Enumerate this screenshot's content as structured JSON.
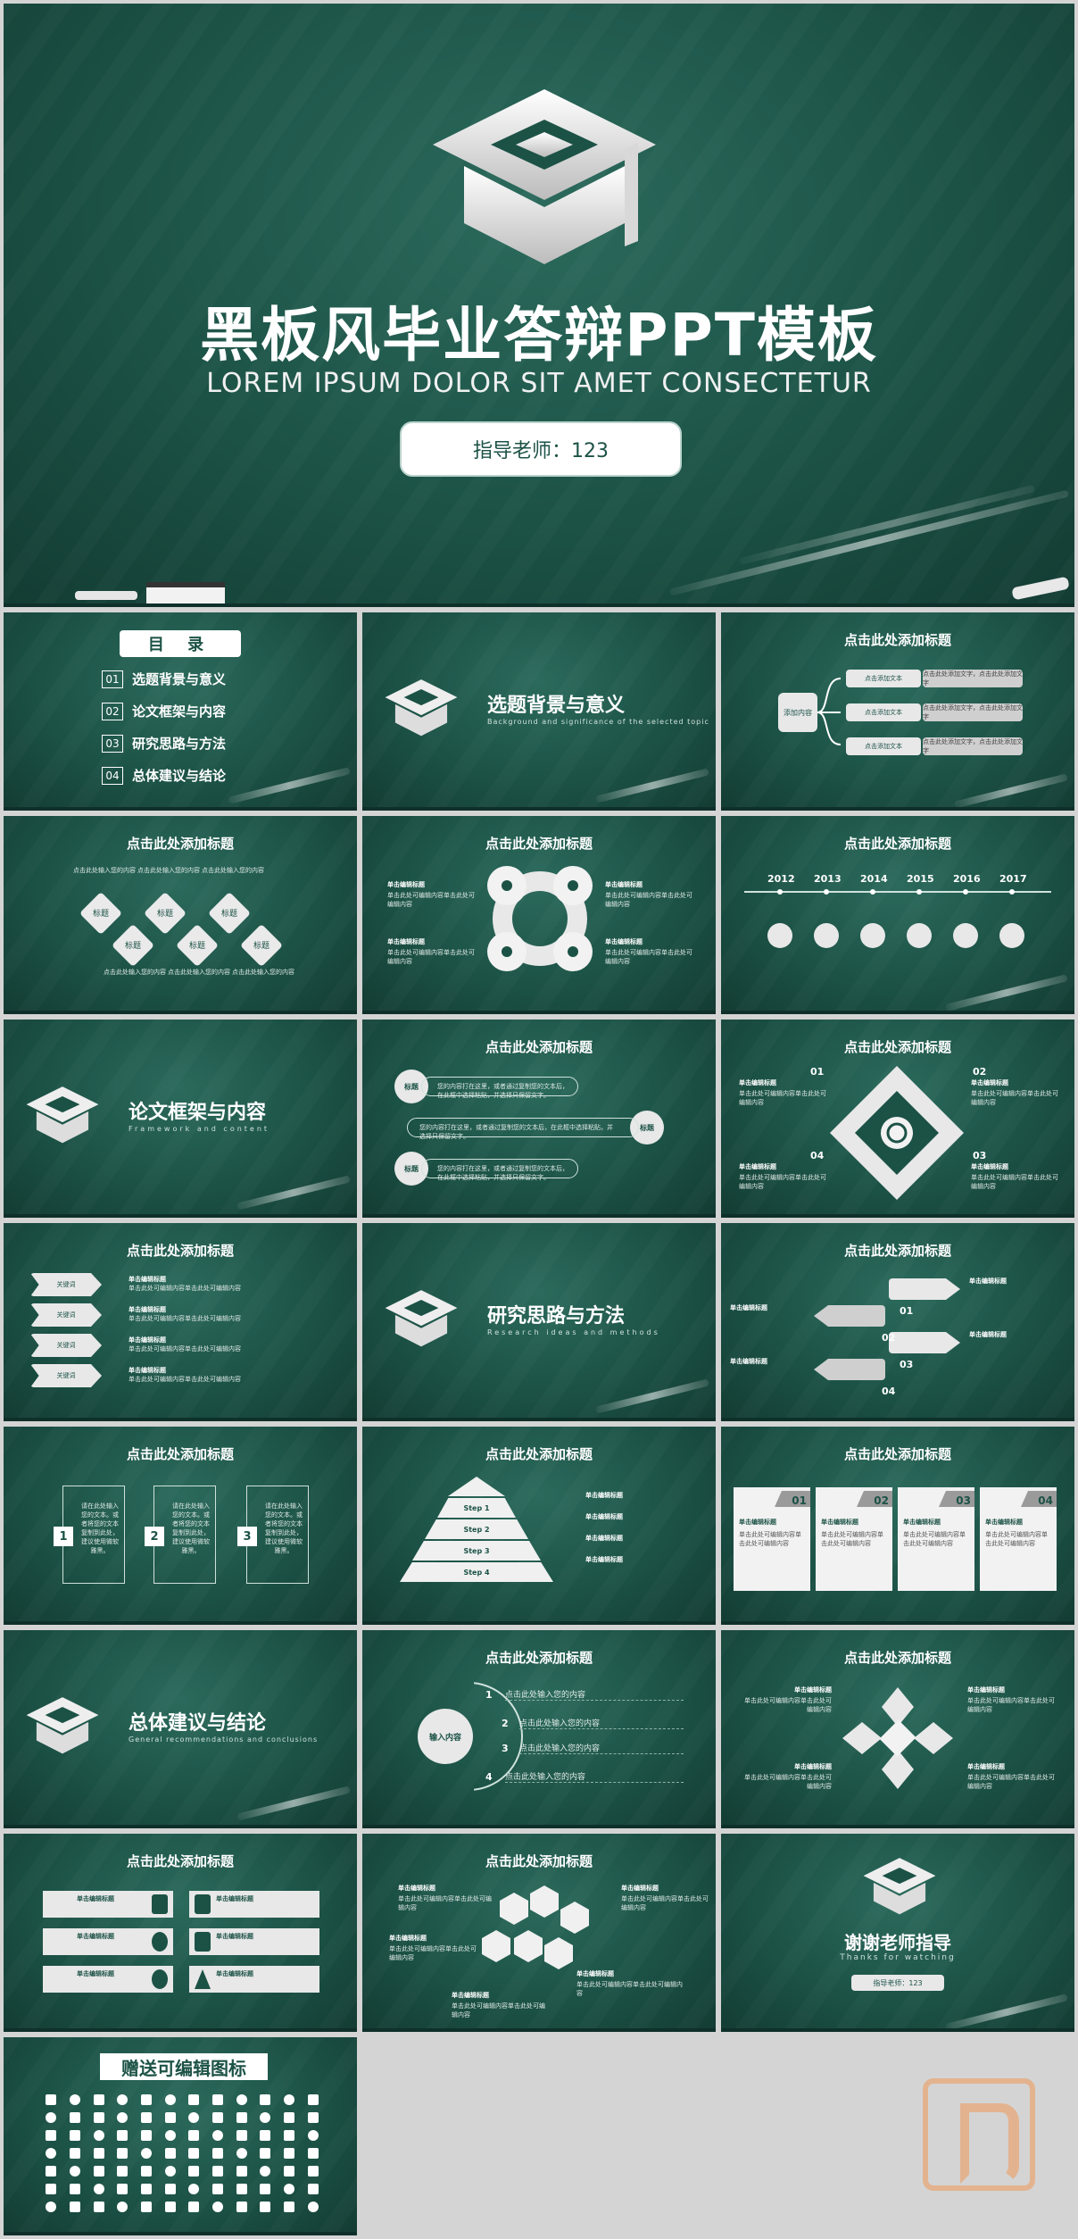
{
  "colors": {
    "board": "#1c5246",
    "board_dark": "#133c33",
    "chalk": "#ffffff",
    "accent_pill": "#e8e8e8"
  },
  "hero": {
    "title": "黑板风毕业答辩PPT模板",
    "subtitle": "LOREM IPSUM DOLOR SIT AMET CONSECTETUR",
    "advisor_button": "指导老师：123",
    "icon": "graduation-cap-icon"
  },
  "toc": {
    "heading": "目 录",
    "items": [
      {
        "num": "01",
        "label": "选题背景与意义"
      },
      {
        "num": "02",
        "label": "论文框架与内容"
      },
      {
        "num": "03",
        "label": "研究思路与方法"
      },
      {
        "num": "04",
        "label": "总体建议与结论"
      }
    ]
  },
  "sections": [
    {
      "title": "选题背景与意义",
      "en": "Background and significance of the selected topic"
    },
    {
      "title": "论文框架与内容",
      "en": "Framework and content"
    },
    {
      "title": "研究思路与方法",
      "en": "Research ideas and methods"
    },
    {
      "title": "总体建议与结论",
      "en": "General recommendations and conclusions"
    }
  ],
  "slide_title": "点击此处添加标题",
  "slide3": {
    "center": "添加内容",
    "items": [
      "点击添加文本",
      "点击添加文本",
      "点击添加文本"
    ],
    "details": [
      "点击此处添加文字，点击此处添加文字",
      "点击此处添加文字，点击此处添加文字",
      "点击此处添加文字，点击此处添加文字"
    ]
  },
  "slide4": {
    "labels": [
      "标题",
      "标题",
      "标题",
      "标题",
      "标题",
      "标题"
    ],
    "texts": [
      "点击此处输入您的内容",
      "点击此处输入您的内容",
      "点击此处输入您的内容",
      "点击此处输入您的内容",
      "点击此处输入您的内容",
      "点击此处输入您的内容"
    ]
  },
  "common": {
    "edit_title": "单击编辑标题",
    "edit_text": "单击此处可编辑内容单击此处可编辑内容",
    "input_text": "点击此处输入您的内容",
    "label": "标题"
  },
  "slide6": {
    "years": [
      "2012",
      "2013",
      "2014",
      "2015",
      "2016",
      "2017"
    ]
  },
  "slide8": {
    "label": "标题",
    "text": "您的内容打在这里，或者通过复制您的文本后，在此框中选择粘贴，并选择只保留文字。"
  },
  "slide9": {
    "nums": [
      "01",
      "02",
      "03",
      "04"
    ]
  },
  "slide10": {
    "arrows": [
      "关键词",
      "关键词",
      "关键词",
      "关键词"
    ]
  },
  "slide12": {
    "nums": [
      "01",
      "02",
      "03",
      "04"
    ]
  },
  "slide13": {
    "nums": [
      "1",
      "2",
      "3"
    ],
    "text": "请在此处输入您的文本。或者将您的文本复制到此处，建议使用微软雅黑。"
  },
  "slide14": {
    "steps": [
      "Step 1",
      "Step 2",
      "Step 3",
      "Step 4"
    ]
  },
  "slide15": {
    "nums": [
      "01",
      "02",
      "03",
      "04"
    ]
  },
  "slide17": {
    "center": "输入内容",
    "nums": [
      "1",
      "2",
      "3",
      "4"
    ]
  },
  "thanks": {
    "title": "谢谢老师指导",
    "en": "Thanks for watching",
    "advisor": "指导老师：123"
  },
  "gift": {
    "title": "赠送可编辑图标"
  }
}
